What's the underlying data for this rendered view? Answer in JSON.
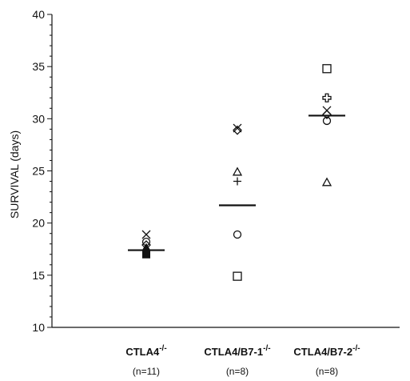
{
  "chart_data": {
    "type": "scatter",
    "ylabel": "SURVIVAL (days)",
    "xlabel": "",
    "ylim": [
      10,
      40
    ],
    "yticks": [
      10,
      15,
      20,
      25,
      30,
      35,
      40
    ],
    "grid": false,
    "categories": [
      {
        "name": "CTLA4",
        "sup": "-/-",
        "n_label": "(n=11)"
      },
      {
        "name": "CTLA4/B7-1",
        "sup": "-/-",
        "n_label": "(n=8)"
      },
      {
        "name": "CTLA4/B7-2",
        "sup": "-/-",
        "n_label": "(n=8)"
      }
    ],
    "points": [
      {
        "group": 0,
        "y": 18.9,
        "marker": "x"
      },
      {
        "group": 0,
        "y": 18.2,
        "marker": "circle"
      },
      {
        "group": 0,
        "y": 17.9,
        "marker": "diamond"
      },
      {
        "group": 0,
        "y": 17.7,
        "marker": "filled-triangle"
      },
      {
        "group": 0,
        "y": 17.4,
        "marker": "filled-circle"
      },
      {
        "group": 0,
        "y": 17.0,
        "marker": "filled-square"
      },
      {
        "group": 1,
        "y": 29.1,
        "marker": "x"
      },
      {
        "group": 1,
        "y": 28.9,
        "marker": "diamond"
      },
      {
        "group": 1,
        "y": 24.9,
        "marker": "triangle"
      },
      {
        "group": 1,
        "y": 24.0,
        "marker": "plus"
      },
      {
        "group": 1,
        "y": 18.9,
        "marker": "circle"
      },
      {
        "group": 1,
        "y": 14.9,
        "marker": "square"
      },
      {
        "group": 2,
        "y": 34.8,
        "marker": "square"
      },
      {
        "group": 2,
        "y": 32.0,
        "marker": "open-cross"
      },
      {
        "group": 2,
        "y": 30.8,
        "marker": "x"
      },
      {
        "group": 2,
        "y": 30.4,
        "marker": "diamond"
      },
      {
        "group": 2,
        "y": 29.8,
        "marker": "circle"
      },
      {
        "group": 2,
        "y": 23.9,
        "marker": "triangle"
      }
    ],
    "means": [
      17.4,
      21.7,
      30.3
    ]
  }
}
